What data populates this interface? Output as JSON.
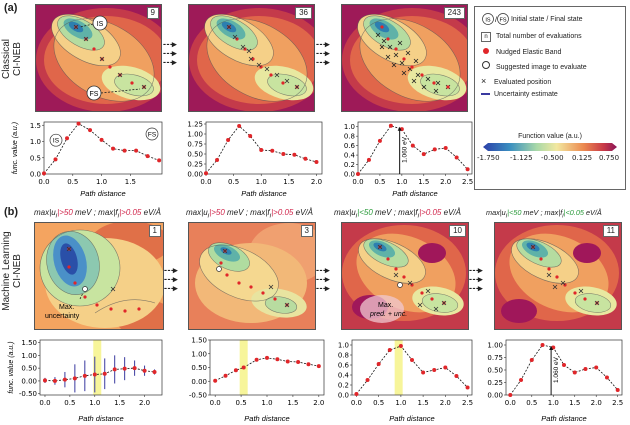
{
  "panel_a": {
    "letter": "(a)",
    "side_label_line1": "Classical",
    "side_label_line2": "CI-NEB",
    "maps": [
      {
        "count": "9",
        "label_start": "IS",
        "label_end": "FS"
      },
      {
        "count": "36"
      },
      {
        "count": "243"
      }
    ]
  },
  "panel_b": {
    "letter": "(b)",
    "side_label_line1": "Machine Learning",
    "side_label_line2": "CI-NEB",
    "conditions": [
      {
        "u_label": "max|u",
        "u_sub": "i",
        "u_op": "|>50",
        "u_unit": "meV ;",
        "f_label": "max|f",
        "f_sub": "i",
        "f_op": "|>0.05",
        "f_unit": "eV/Å"
      },
      {
        "u_label": "max|u",
        "u_sub": "i",
        "u_op": "|>50",
        "u_unit": "meV ;",
        "f_label": "max|f",
        "f_sub": "i",
        "f_op": "|>0.05",
        "f_unit": "eV/Å"
      },
      {
        "u_label": "max|u",
        "u_sub": "i",
        "u_op": "|<50",
        "u_unit": "meV ;",
        "f_label": "max|f",
        "f_sub": "i",
        "f_op": "|>0.05",
        "f_unit": "eV/Å"
      },
      {
        "u_label": "max|u",
        "u_sub": "i",
        "u_op": "|<50",
        "u_unit": "meV ;",
        "f_label": "max|f",
        "f_sub": "i",
        "f_op": "|<0.05",
        "f_unit": "eV/Å"
      }
    ],
    "maps": [
      {
        "count": "1",
        "annotation_line1": "Max.",
        "annotation_line2": "uncertainty"
      },
      {
        "count": "3"
      },
      {
        "count": "10",
        "annotation_line1": "Max.",
        "annotation_line2": "pred. + unc."
      },
      {
        "count": "11"
      }
    ]
  },
  "legend": {
    "is_fs_label": "Initial state / Final state",
    "n_label": "Total number of evaluations",
    "n_symbol": "n",
    "neb_label": "Nudged Elastic Band",
    "suggested_label": "Suggested image to evaluate",
    "evaluated_label": "Evaluated position",
    "uncertainty_label": "Uncertainty estimate",
    "colorbar_title": "Function value (a.u.)",
    "colorbar_ticks": [
      "-1.750",
      "-1.125",
      "-0.500",
      "0.125",
      "0.750"
    ],
    "colors": {
      "low": "#3b4cc0",
      "mid": "#f7e8a0",
      "high": "#a0175a",
      "neb": "#e0262a",
      "uncertainty": "#3a3aa0"
    }
  },
  "chart_data": [
    {
      "type": "line",
      "id": "a1",
      "x": [
        0.0,
        0.2,
        0.4,
        0.6,
        0.8,
        1.0,
        1.2,
        1.4,
        1.6,
        1.8,
        2.0
      ],
      "y": [
        0.02,
        0.45,
        1.1,
        1.55,
        1.35,
        1.05,
        0.78,
        0.72,
        0.72,
        0.55,
        0.42
      ],
      "xlim": [
        0,
        2.05
      ],
      "ylim": [
        0,
        1.6
      ],
      "xticks": [
        "0.0",
        "0.5",
        "1.0",
        "1.5"
      ],
      "xtick_vals": [
        0,
        0.5,
        1.0,
        1.5
      ],
      "yticks": [
        "0.0",
        "0.5",
        "1.0",
        "1.5"
      ],
      "ytick_vals": [
        0,
        0.5,
        1.0,
        1.5
      ],
      "xlabel": "Path distance",
      "ylabel": "func. value (a.u.)",
      "labels": {
        "start": "IS",
        "end": "FS"
      }
    },
    {
      "type": "line",
      "id": "a2",
      "x": [
        0.0,
        0.2,
        0.4,
        0.6,
        0.8,
        1.0,
        1.2,
        1.4,
        1.6,
        1.8,
        2.0
      ],
      "y": [
        0.02,
        0.35,
        0.85,
        1.2,
        0.95,
        0.6,
        0.58,
        0.5,
        0.48,
        0.38,
        0.3
      ],
      "xlim": [
        0,
        2.1
      ],
      "ylim": [
        0,
        1.3
      ],
      "xticks": [
        "0.0",
        "0.5",
        "1.0",
        "1.5",
        "2.0"
      ],
      "xtick_vals": [
        0,
        0.5,
        1.0,
        1.5,
        2.0
      ],
      "yticks": [
        "0.00",
        "0.25",
        "0.50",
        "0.75",
        "1.00",
        "1.25"
      ],
      "ytick_vals": [
        0,
        0.25,
        0.5,
        0.75,
        1.0,
        1.25
      ],
      "xlabel": "Path distance"
    },
    {
      "type": "line",
      "id": "a3",
      "x": [
        0.0,
        0.25,
        0.5,
        0.75,
        1.0,
        1.25,
        1.5,
        1.75,
        2.0,
        2.25,
        2.5
      ],
      "y": [
        0.0,
        0.3,
        0.7,
        1.02,
        0.95,
        0.6,
        0.42,
        0.52,
        0.55,
        0.35,
        0.1
      ],
      "xlim": [
        0,
        2.6
      ],
      "ylim": [
        0,
        1.1
      ],
      "xticks": [
        "0.0",
        "0.5",
        "1.0",
        "1.5",
        "2.0",
        "2.5"
      ],
      "xtick_vals": [
        0,
        0.5,
        1.0,
        1.5,
        2.0,
        2.5
      ],
      "yticks": [
        "0.0",
        "0.2",
        "0.4",
        "0.6",
        "0.8",
        "1.0"
      ],
      "ytick_vals": [
        0,
        0.2,
        0.4,
        0.6,
        0.8,
        1.0
      ],
      "xlabel": "Path distance",
      "barrier_label": "1.060 eV",
      "barrier_x": 0.95
    },
    {
      "type": "line",
      "id": "b1",
      "x": [
        0.0,
        0.2,
        0.4,
        0.6,
        0.8,
        1.0,
        1.2,
        1.4,
        1.6,
        1.8,
        2.0,
        2.2
      ],
      "y": [
        0.02,
        0.0,
        0.05,
        0.1,
        0.2,
        0.25,
        0.28,
        0.45,
        0.48,
        0.5,
        0.4,
        0.35
      ],
      "err": [
        0.1,
        0.15,
        0.3,
        0.55,
        0.6,
        0.7,
        0.6,
        0.55,
        0.45,
        0.3,
        0.2,
        0.1
      ],
      "xlim": [
        -0.1,
        2.35
      ],
      "ylim": [
        -0.55,
        1.6
      ],
      "highlight_x": 1.05,
      "xticks": [
        "0.0",
        "0.5",
        "1.0",
        "1.5",
        "2.0"
      ],
      "xtick_vals": [
        0,
        0.5,
        1.0,
        1.5,
        2.0
      ],
      "yticks": [
        "-0.50",
        "0.00",
        "0.50",
        "1.00",
        "1.50"
      ],
      "ytick_vals": [
        -0.5,
        0,
        0.5,
        1.0,
        1.5
      ],
      "xlabel": "Path distance",
      "ylabel": "func. value (a.u.)"
    },
    {
      "type": "line",
      "id": "b2",
      "x": [
        0.0,
        0.2,
        0.4,
        0.55,
        0.8,
        1.0,
        1.2,
        1.4,
        1.6,
        1.8,
        2.0
      ],
      "y": [
        0.02,
        0.2,
        0.4,
        0.5,
        0.78,
        0.85,
        0.8,
        0.72,
        0.7,
        0.62,
        0.55
      ],
      "xlim": [
        -0.1,
        2.1
      ],
      "ylim": [
        -0.5,
        1.5
      ],
      "highlight_x": 0.55,
      "xticks": [
        "0.0",
        "0.5",
        "1.0",
        "1.5",
        "2.0"
      ],
      "xtick_vals": [
        0,
        0.5,
        1.0,
        1.5,
        2.0
      ],
      "yticks": [
        "-0.50",
        "0.00",
        "0.50",
        "1.00",
        "1.50"
      ],
      "ytick_vals": [
        -0.5,
        0,
        0.5,
        1.0,
        1.5
      ],
      "xlabel": "Path distance"
    },
    {
      "type": "line",
      "id": "b3",
      "x": [
        0.0,
        0.25,
        0.5,
        0.75,
        1.0,
        1.25,
        1.5,
        1.75,
        2.0,
        2.25,
        2.5
      ],
      "y": [
        0.02,
        0.3,
        0.62,
        0.9,
        0.98,
        0.7,
        0.45,
        0.5,
        0.55,
        0.38,
        0.15
      ],
      "xlim": [
        -0.1,
        2.6
      ],
      "ylim": [
        0,
        1.1
      ],
      "highlight_x": 0.95,
      "xticks": [
        "0.0",
        "0.5",
        "1.0",
        "1.5",
        "2.0",
        "2.5"
      ],
      "xtick_vals": [
        0,
        0.5,
        1.0,
        1.5,
        2.0,
        2.5
      ],
      "yticks": [
        "0.0",
        "0.2",
        "0.4",
        "0.6",
        "0.8",
        "1.0"
      ],
      "ytick_vals": [
        0,
        0.2,
        0.4,
        0.6,
        0.8,
        1.0
      ],
      "xlabel": "Path distance"
    },
    {
      "type": "line",
      "id": "b4",
      "x": [
        0.0,
        0.25,
        0.5,
        0.75,
        1.0,
        1.25,
        1.5,
        1.75,
        2.0,
        2.25,
        2.5
      ],
      "y": [
        0.0,
        0.3,
        0.7,
        1.0,
        0.95,
        0.6,
        0.45,
        0.52,
        0.55,
        0.35,
        0.1
      ],
      "xlim": [
        -0.1,
        2.6
      ],
      "ylim": [
        0,
        1.1
      ],
      "xticks": [
        "0.0",
        "0.5",
        "1.0",
        "1.5",
        "2.0",
        "2.5"
      ],
      "xtick_vals": [
        0,
        0.5,
        1.0,
        1.5,
        2.0,
        2.5
      ],
      "yticks": [
        "0.00",
        "0.25",
        "0.50",
        "0.75",
        "1.00"
      ],
      "ytick_vals": [
        0,
        0.25,
        0.5,
        0.75,
        1.0
      ],
      "xlabel": "Path distance",
      "barrier_label": "1.060 eV",
      "barrier_x": 0.95
    }
  ]
}
